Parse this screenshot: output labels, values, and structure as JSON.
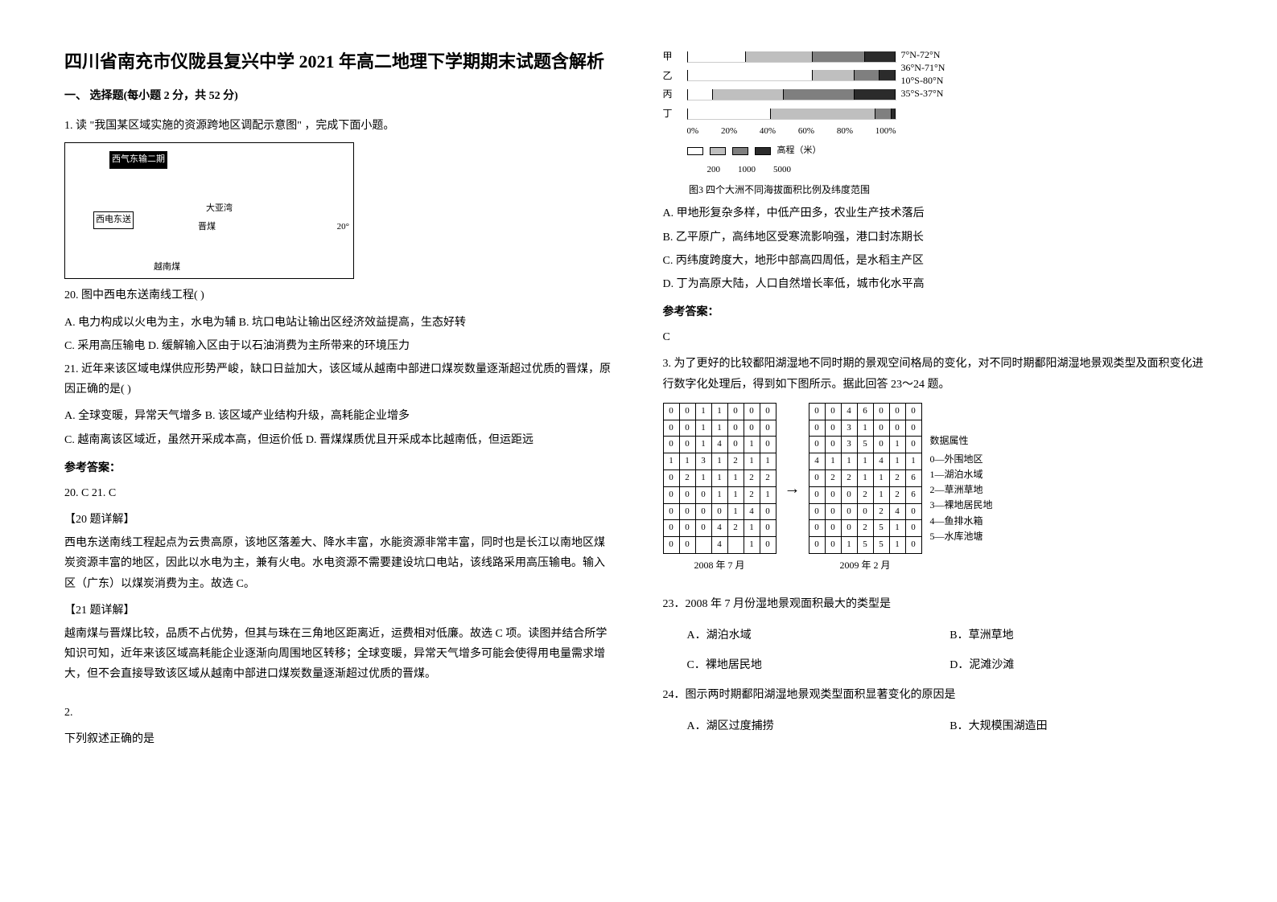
{
  "title": "四川省南充市仪陇县复兴中学 2021 年高二地理下学期期末试题含解析",
  "section1": {
    "header": "一、 选择题(每小题 2 分，共 52 分)",
    "q1": {
      "intro": "1. 读 \"我国某区域实施的资源跨地区调配示意图\" ，完成下面小题。",
      "map_labels": {
        "west_gas": "西气东输二期",
        "west_elec": "西电东送",
        "daya": "大亚湾",
        "jinmei": "晋煤",
        "yuenan": "越南煤",
        "lat": "20°"
      },
      "q20": "20.  图中西电东送南线工程(    )",
      "q20_a": "A.  电力构成以火电为主，水电为辅    B.  坑口电站让输出区经济效益提高，生态好转",
      "q20_c": "C.  采用高压输电       D.  缓解输入区由于以石油消费为主所带来的环境压力",
      "q21": "21.  近年来该区域电煤供应形势严峻，缺口日益加大，该区域从越南中部进口煤炭数量逐渐超过优质的晋煤，原因正确的是(    )",
      "q21_a": "A.  全球变暖，异常天气增多    B.  该区域产业结构升级，高耗能企业增多",
      "q21_c": "C.  越南离该区域近，虽然开采成本高，但运价低    D.  晋煤煤质优且开采成本比越南低，但运距远",
      "answer_header": "参考答案：",
      "answers": "20.  C          21.  C",
      "exp20_header": "【20 题详解】",
      "exp20": "西电东送南线工程起点为云贵高原，该地区落差大、降水丰富，水能资源非常丰富，同时也是长江以南地区煤炭资源丰富的地区，因此以水电为主，兼有火电。水电资源不需要建设坑口电站，该线路采用高压输电。输入区（广东）以煤炭消费为主。故选 C。",
      "exp21_header": "【21 题详解】",
      "exp21": "越南煤与晋煤比较，品质不占优势，但其与珠在三角地区距离近，运费相对低廉。故选 C 项。读图并结合所学知识可知，近年来该区域高耗能企业逐渐向周围地区转移；全球变暖，异常天气增多可能会使得用电量需求增大，但不会直接导致该区域从越南中部进口煤炭数量逐渐超过优质的晋煤。"
    },
    "q2": {
      "number": "2.",
      "intro": "下列叙述正确的是"
    }
  },
  "right": {
    "chart": {
      "rows": [
        {
          "label": "甲",
          "segs": [
            0.28,
            0.32,
            0.25,
            0.15
          ],
          "lat": "7°N-72°N"
        },
        {
          "label": "乙",
          "segs": [
            0.6,
            0.2,
            0.12,
            0.08
          ],
          "lat": "36°N-71°N"
        },
        {
          "label": "丙",
          "segs": [
            0.12,
            0.34,
            0.34,
            0.2
          ],
          "lat": "10°S-80°N"
        },
        {
          "label": "丁",
          "segs": [
            0.4,
            0.5,
            0.08,
            0.02
          ],
          "lat": "35°S-37°N"
        }
      ],
      "axis": [
        "0%",
        "20%",
        "40%",
        "60%",
        "80%",
        "100%"
      ],
      "legend_values": [
        "200",
        "1000",
        "5000"
      ],
      "legend_label": "高程（米）",
      "caption": "图3  四个大洲不同海拔面积比例及纬度范围",
      "colors": [
        "#ffffff",
        "#bfbfbf",
        "#7f7f7f",
        "#2b2b2b"
      ]
    },
    "q2_options": {
      "a": "A.  甲地形复杂多样，中低产田多，农业生产技术落后",
      "b": "B.  乙平原广，高纬地区受寒流影响强，港口封冻期长",
      "c": "C.  丙纬度跨度大，地形中部高四周低，是水稻主产区",
      "d": "D.  丁为高原大陆，人口自然增长率低，城市化水平高"
    },
    "q2_answer_header": "参考答案：",
    "q2_answer": "C",
    "q3": {
      "intro": "3. 为了更好的比较鄱阳湖湿地不同时期的景观空间格局的变化，对不同时期鄱阳湖湿地景观类型及面积变化进行数字化处理后，得到如下图所示。据此回答 23～24 题。",
      "grid_2008": [
        [
          0,
          0,
          1,
          1,
          0,
          0,
          0
        ],
        [
          0,
          0,
          1,
          1,
          0,
          0,
          0
        ],
        [
          0,
          0,
          1,
          4,
          0,
          1,
          0
        ],
        [
          1,
          1,
          3,
          1,
          2,
          1,
          1
        ],
        [
          0,
          2,
          1,
          1,
          1,
          2,
          2
        ],
        [
          0,
          0,
          0,
          1,
          1,
          2,
          1
        ],
        [
          0,
          0,
          0,
          0,
          1,
          4,
          0
        ],
        [
          0,
          0,
          0,
          4,
          2,
          1,
          0
        ],
        [
          0,
          0,
          "",
          4,
          "",
          1,
          0
        ]
      ],
      "grid_2009": [
        [
          0,
          0,
          4,
          6,
          0,
          0,
          0
        ],
        [
          0,
          0,
          3,
          1,
          0,
          0,
          0
        ],
        [
          0,
          0,
          3,
          5,
          0,
          1,
          0
        ],
        [
          4,
          1,
          1,
          1,
          4,
          1,
          1
        ],
        [
          0,
          2,
          2,
          1,
          1,
          2,
          6
        ],
        [
          0,
          0,
          0,
          2,
          1,
          2,
          6
        ],
        [
          0,
          0,
          0,
          0,
          2,
          4,
          0
        ],
        [
          0,
          0,
          0,
          2,
          5,
          1,
          0
        ],
        [
          0,
          0,
          1,
          5,
          5,
          1,
          0
        ]
      ],
      "grid_caption_2008": "2008 年 7 月",
      "grid_caption_2009": "2009 年 2 月",
      "legend_title": "数据属性",
      "legend_items": [
        "0—外围地区",
        "1—湖泊水域",
        "2—草洲草地",
        "3—裸地居民地",
        "4—鱼排水箱",
        "5—水库池塘"
      ],
      "q23": "23．2008 年 7 月份湿地景观面积最大的类型是",
      "q23_a": "A．湖泊水域",
      "q23_b": "B．草洲草地",
      "q23_c": "C．裸地居民地",
      "q23_d": "D．泥滩沙滩",
      "q24": "24．图示两时期鄱阳湖湿地景观类型面积显著变化的原因是",
      "q24_a": "A．湖区过度捕捞",
      "q24_b": "B．大规模围湖造田"
    }
  }
}
